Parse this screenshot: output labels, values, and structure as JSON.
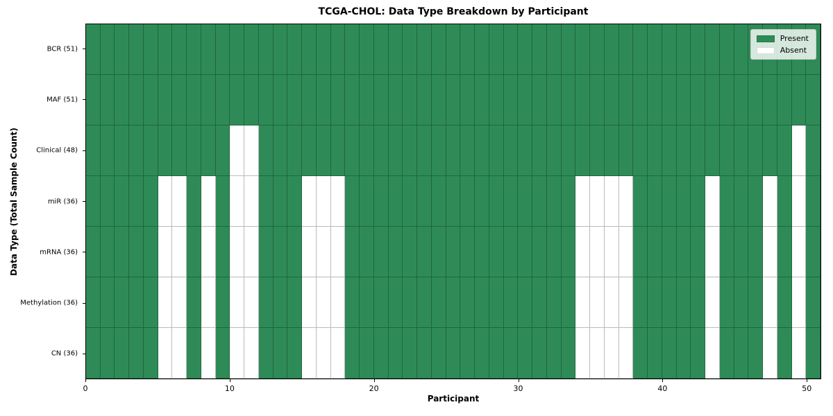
{
  "title": "TCGA-CHOL: Data Type Breakdown by Participant",
  "axes": {
    "xlabel": "Participant",
    "ylabel": "Data Type (Total Sample Count)",
    "x_ticks": [
      "0",
      "10",
      "20",
      "30",
      "40",
      "50"
    ],
    "x_tick_values": [
      0,
      10,
      20,
      30,
      40,
      50
    ],
    "x_range": [
      0,
      51
    ]
  },
  "legend": {
    "position": "upper right",
    "items": [
      {
        "label": "Present",
        "color": "#2e8b57"
      },
      {
        "label": "Absent",
        "color": "#ffffff"
      }
    ]
  },
  "colors": {
    "present": "#2e8b57",
    "absent": "#ffffff",
    "cell_border": "#00000045",
    "plot_border": "#000000",
    "background": "#ffffff"
  },
  "chart_data": {
    "type": "heatmap",
    "title": "TCGA-CHOL: Data Type Breakdown by Participant",
    "xlabel": "Participant",
    "ylabel": "Data Type (Total Sample Count)",
    "x_ticks": [
      0,
      10,
      20,
      30,
      40,
      50
    ],
    "n_participants": 51,
    "value_encoding": {
      "present": 1,
      "absent": 0
    },
    "grid": true,
    "legend_position": "upper right",
    "rows": [
      {
        "label": "BCR (51)",
        "data_type": "BCR",
        "present_count": 51,
        "absent_participants": []
      },
      {
        "label": "MAF (51)",
        "data_type": "MAF",
        "present_count": 51,
        "absent_participants": []
      },
      {
        "label": "Clinical (48)",
        "data_type": "Clinical",
        "present_count": 48,
        "absent_participants": [
          10,
          11,
          49
        ]
      },
      {
        "label": "miR (36)",
        "data_type": "miR",
        "present_count": 36,
        "absent_participants": [
          5,
          6,
          8,
          10,
          11,
          15,
          16,
          17,
          34,
          35,
          36,
          37,
          43,
          47,
          49
        ]
      },
      {
        "label": "mRNA (36)",
        "data_type": "mRNA",
        "present_count": 36,
        "absent_participants": [
          5,
          6,
          8,
          10,
          11,
          15,
          16,
          17,
          34,
          35,
          36,
          37,
          43,
          47,
          49
        ]
      },
      {
        "label": "Methylation (36)",
        "data_type": "Methylation",
        "present_count": 36,
        "absent_participants": [
          5,
          6,
          8,
          10,
          11,
          15,
          16,
          17,
          34,
          35,
          36,
          37,
          43,
          47,
          49
        ]
      },
      {
        "label": "CN (36)",
        "data_type": "CN",
        "present_count": 36,
        "absent_participants": [
          5,
          6,
          8,
          10,
          11,
          15,
          16,
          17,
          34,
          35,
          36,
          37,
          43,
          47,
          49
        ]
      }
    ]
  }
}
